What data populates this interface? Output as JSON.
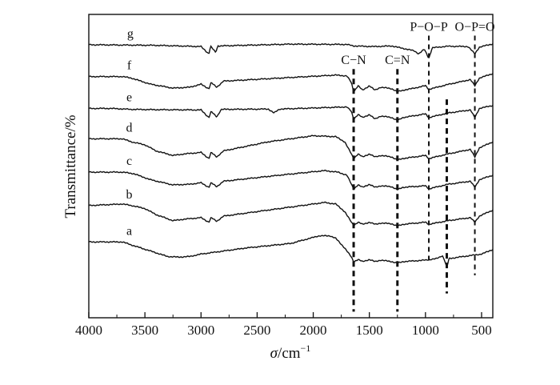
{
  "chart_data": {
    "type": "line",
    "xlabel_sym": "σ",
    "xlabel_unit": "/cm",
    "xlabel_exp": "−1",
    "ylabel": "Transmittance/%",
    "xlim": [
      4000,
      400
    ],
    "x_reversed": true,
    "x_ticks": [
      4000,
      3500,
      3000,
      2500,
      2000,
      1500,
      1000,
      500
    ],
    "y_ticks": false,
    "grid": false,
    "series": [
      {
        "name": "g",
        "label_x": 3630,
        "offset": 0.9,
        "shape": [
          [
            4000,
            0
          ],
          [
            3400,
            -0.002
          ],
          [
            3000,
            -0.006
          ],
          [
            2930,
            -0.03
          ],
          [
            2915,
            -0.005
          ],
          [
            2870,
            -0.025
          ],
          [
            2850,
            -0.004
          ],
          [
            2200,
            0.002
          ],
          [
            1700,
            0.001
          ],
          [
            1640,
            -0.004
          ],
          [
            1460,
            -0.006
          ],
          [
            1300,
            -0.004
          ],
          [
            1100,
            -0.02
          ],
          [
            1060,
            -0.03
          ],
          [
            1010,
            -0.015
          ],
          [
            970,
            -0.045
          ],
          [
            940,
            -0.01
          ],
          [
            800,
            -0.005
          ],
          [
            620,
            -0.006
          ],
          [
            560,
            -0.03
          ],
          [
            520,
            -0.008
          ],
          [
            400,
            0.003
          ]
        ]
      },
      {
        "name": "f",
        "label_x": 3640,
        "offset": 0.795,
        "shape": [
          [
            4000,
            0
          ],
          [
            3700,
            0
          ],
          [
            3620,
            -0.005
          ],
          [
            3450,
            -0.025
          ],
          [
            3250,
            -0.038
          ],
          [
            3100,
            -0.035
          ],
          [
            3000,
            -0.025
          ],
          [
            2930,
            -0.04
          ],
          [
            2910,
            -0.02
          ],
          [
            2860,
            -0.035
          ],
          [
            2800,
            -0.015
          ],
          [
            2300,
            -0.005
          ],
          [
            1800,
            0.005
          ],
          [
            1700,
            0.002
          ],
          [
            1660,
            -0.02
          ],
          [
            1640,
            -0.05
          ],
          [
            1600,
            -0.03
          ],
          [
            1560,
            -0.045
          ],
          [
            1500,
            -0.03
          ],
          [
            1450,
            -0.045
          ],
          [
            1400,
            -0.035
          ],
          [
            1300,
            -0.04
          ],
          [
            1250,
            -0.05
          ],
          [
            1200,
            -0.045
          ],
          [
            1100,
            -0.038
          ],
          [
            1000,
            -0.03
          ],
          [
            970,
            -0.042
          ],
          [
            800,
            -0.026
          ],
          [
            600,
            -0.01
          ],
          [
            560,
            -0.03
          ],
          [
            520,
            -0.005
          ],
          [
            400,
            0.01
          ]
        ]
      },
      {
        "name": "e",
        "label_x": 3640,
        "offset": 0.69,
        "shape": [
          [
            4000,
            0
          ],
          [
            3800,
            0
          ],
          [
            3620,
            -0.003
          ],
          [
            3400,
            -0.004
          ],
          [
            3000,
            -0.005
          ],
          [
            2930,
            -0.03
          ],
          [
            2910,
            -0.01
          ],
          [
            2860,
            -0.028
          ],
          [
            2820,
            -0.003
          ],
          [
            2400,
            -0.002
          ],
          [
            2350,
            -0.015
          ],
          [
            2300,
            -0.002
          ],
          [
            1700,
            0.005
          ],
          [
            1660,
            -0.01
          ],
          [
            1640,
            -0.035
          ],
          [
            1600,
            -0.02
          ],
          [
            1560,
            -0.03
          ],
          [
            1500,
            -0.02
          ],
          [
            1450,
            -0.035
          ],
          [
            1400,
            -0.025
          ],
          [
            1300,
            -0.03
          ],
          [
            1250,
            -0.04
          ],
          [
            1200,
            -0.03
          ],
          [
            1000,
            -0.018
          ],
          [
            970,
            -0.03
          ],
          [
            800,
            -0.015
          ],
          [
            600,
            -0.005
          ],
          [
            560,
            -0.03
          ],
          [
            520,
            0
          ],
          [
            400,
            0.01
          ]
        ]
      },
      {
        "name": "d",
        "label_x": 3640,
        "offset": 0.59,
        "shape": [
          [
            4000,
            0
          ],
          [
            3700,
            0
          ],
          [
            3620,
            -0.01
          ],
          [
            3500,
            -0.02
          ],
          [
            3400,
            -0.04
          ],
          [
            3250,
            -0.055
          ],
          [
            3150,
            -0.05
          ],
          [
            3000,
            -0.045
          ],
          [
            2930,
            -0.065
          ],
          [
            2910,
            -0.045
          ],
          [
            2860,
            -0.06
          ],
          [
            2800,
            -0.04
          ],
          [
            2400,
            -0.01
          ],
          [
            2000,
            0.01
          ],
          [
            1800,
            0.007
          ],
          [
            1720,
            -0.01
          ],
          [
            1660,
            -0.05
          ],
          [
            1640,
            -0.065
          ],
          [
            1600,
            -0.05
          ],
          [
            1560,
            -0.06
          ],
          [
            1500,
            -0.05
          ],
          [
            1450,
            -0.06
          ],
          [
            1400,
            -0.055
          ],
          [
            1300,
            -0.06
          ],
          [
            1250,
            -0.07
          ],
          [
            1200,
            -0.065
          ],
          [
            1100,
            -0.06
          ],
          [
            1000,
            -0.055
          ],
          [
            970,
            -0.065
          ],
          [
            800,
            -0.05
          ],
          [
            600,
            -0.035
          ],
          [
            560,
            -0.06
          ],
          [
            520,
            -0.03
          ],
          [
            400,
            -0.01
          ]
        ]
      },
      {
        "name": "c",
        "label_x": 3640,
        "offset": 0.48,
        "shape": [
          [
            4000,
            0
          ],
          [
            3700,
            0
          ],
          [
            3600,
            -0.005
          ],
          [
            3450,
            -0.025
          ],
          [
            3250,
            -0.042
          ],
          [
            3100,
            -0.04
          ],
          [
            3000,
            -0.035
          ],
          [
            2930,
            -0.05
          ],
          [
            2910,
            -0.035
          ],
          [
            2860,
            -0.048
          ],
          [
            2800,
            -0.03
          ],
          [
            2300,
            -0.01
          ],
          [
            1900,
            0.005
          ],
          [
            1780,
            0
          ],
          [
            1700,
            -0.01
          ],
          [
            1660,
            -0.04
          ],
          [
            1640,
            -0.055
          ],
          [
            1600,
            -0.042
          ],
          [
            1560,
            -0.05
          ],
          [
            1500,
            -0.04
          ],
          [
            1450,
            -0.05
          ],
          [
            1400,
            -0.045
          ],
          [
            1300,
            -0.048
          ],
          [
            1250,
            -0.058
          ],
          [
            1200,
            -0.05
          ],
          [
            1000,
            -0.045
          ],
          [
            970,
            -0.055
          ],
          [
            800,
            -0.04
          ],
          [
            600,
            -0.03
          ],
          [
            560,
            -0.05
          ],
          [
            520,
            -0.025
          ],
          [
            400,
            -0.01
          ]
        ]
      },
      {
        "name": "b",
        "label_x": 3640,
        "offset": 0.37,
        "shape": [
          [
            4000,
            0
          ],
          [
            3700,
            0.005
          ],
          [
            3620,
            0
          ],
          [
            3500,
            -0.01
          ],
          [
            3400,
            -0.03
          ],
          [
            3250,
            -0.05
          ],
          [
            3150,
            -0.045
          ],
          [
            3000,
            -0.04
          ],
          [
            2930,
            -0.055
          ],
          [
            2910,
            -0.04
          ],
          [
            2860,
            -0.052
          ],
          [
            2800,
            -0.035
          ],
          [
            2300,
            -0.01
          ],
          [
            1900,
            0.01
          ],
          [
            1800,
            0.005
          ],
          [
            1720,
            -0.02
          ],
          [
            1660,
            -0.055
          ],
          [
            1640,
            -0.065
          ],
          [
            1600,
            -0.055
          ],
          [
            1560,
            -0.062
          ],
          [
            1500,
            -0.055
          ],
          [
            1450,
            -0.062
          ],
          [
            1400,
            -0.058
          ],
          [
            1300,
            -0.06
          ],
          [
            1250,
            -0.068
          ],
          [
            1200,
            -0.062
          ],
          [
            1000,
            -0.055
          ],
          [
            970,
            -0.062
          ],
          [
            800,
            -0.05
          ],
          [
            600,
            -0.04
          ],
          [
            560,
            -0.055
          ],
          [
            520,
            -0.035
          ],
          [
            400,
            -0.015
          ]
        ]
      },
      {
        "name": "a",
        "label_x": 3640,
        "offset": 0.25,
        "shape": [
          [
            4000,
            0
          ],
          [
            3700,
            0
          ],
          [
            3620,
            -0.01
          ],
          [
            3450,
            -0.03
          ],
          [
            3300,
            -0.048
          ],
          [
            3200,
            -0.05
          ],
          [
            3100,
            -0.048
          ],
          [
            3000,
            -0.04
          ],
          [
            2600,
            -0.02
          ],
          [
            2200,
            -0.005
          ],
          [
            1950,
            0.02
          ],
          [
            1850,
            0.02
          ],
          [
            1800,
            0.012
          ],
          [
            1720,
            -0.02
          ],
          [
            1660,
            -0.05
          ],
          [
            1640,
            -0.065
          ],
          [
            1600,
            -0.058
          ],
          [
            1560,
            -0.065
          ],
          [
            1500,
            -0.058
          ],
          [
            1450,
            -0.065
          ],
          [
            1400,
            -0.06
          ],
          [
            1300,
            -0.065
          ],
          [
            1250,
            -0.07
          ],
          [
            1200,
            -0.065
          ],
          [
            1000,
            -0.06
          ],
          [
            900,
            -0.055
          ],
          [
            850,
            -0.045
          ],
          [
            830,
            -0.06
          ],
          [
            810,
            -0.085
          ],
          [
            790,
            -0.055
          ],
          [
            700,
            -0.05
          ],
          [
            600,
            -0.045
          ],
          [
            500,
            -0.04
          ],
          [
            400,
            -0.025
          ]
        ]
      }
    ],
    "annotations": [
      {
        "text": "C−N",
        "x": 1640,
        "style": "thick",
        "y_top": 0.82,
        "y_bottom": 0.02
      },
      {
        "text": "C=N",
        "x": 1250,
        "style": "thick",
        "y_top": 0.82,
        "y_bottom": 0.02
      },
      {
        "text": "P−O−P",
        "x": 970,
        "style": "thin",
        "y_top": 0.93,
        "y_bottom": 0.18
      },
      {
        "text": "",
        "x": 810,
        "style": "thick",
        "y_top": 0.72,
        "y_bottom": 0.08
      },
      {
        "text": "O−P=O",
        "x": 560,
        "style": "thin",
        "y_top": 0.93,
        "y_bottom": 0.14
      }
    ]
  }
}
